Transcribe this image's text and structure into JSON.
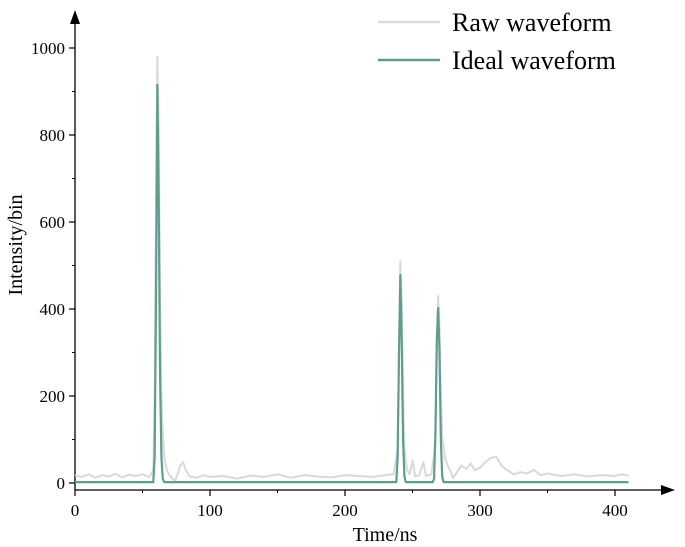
{
  "chart_data": {
    "type": "line",
    "xlabel": "Time/ns",
    "ylabel": "Intensity/bin",
    "xlim": [
      0,
      440
    ],
    "ylim": [
      -10,
      1100
    ],
    "xticks": [
      0,
      100,
      200,
      300,
      400
    ],
    "yticks": [
      0,
      200,
      400,
      600,
      800,
      1000
    ],
    "legend": {
      "position": "top-right"
    },
    "grid": false,
    "series": [
      {
        "name": "Raw waveform",
        "color": "#d9d9d9",
        "points": [
          [
            0,
            18
          ],
          [
            5,
            14
          ],
          [
            10,
            20
          ],
          [
            15,
            12
          ],
          [
            20,
            18
          ],
          [
            25,
            15
          ],
          [
            30,
            21
          ],
          [
            35,
            13
          ],
          [
            40,
            19
          ],
          [
            45,
            16
          ],
          [
            50,
            20
          ],
          [
            55,
            14
          ],
          [
            58,
            30
          ],
          [
            59,
            200
          ],
          [
            60,
            650
          ],
          [
            61,
            980
          ],
          [
            62,
            820
          ],
          [
            63,
            420
          ],
          [
            64,
            200
          ],
          [
            65,
            120
          ],
          [
            66,
            60
          ],
          [
            68,
            30
          ],
          [
            70,
            18
          ],
          [
            72,
            10
          ],
          [
            74,
            5
          ],
          [
            76,
            20
          ],
          [
            78,
            40
          ],
          [
            80,
            48
          ],
          [
            82,
            30
          ],
          [
            85,
            15
          ],
          [
            90,
            12
          ],
          [
            95,
            18
          ],
          [
            100,
            14
          ],
          [
            110,
            16
          ],
          [
            120,
            10
          ],
          [
            130,
            17
          ],
          [
            140,
            14
          ],
          [
            150,
            20
          ],
          [
            160,
            12
          ],
          [
            170,
            18
          ],
          [
            180,
            15
          ],
          [
            190,
            13
          ],
          [
            200,
            18
          ],
          [
            210,
            16
          ],
          [
            220,
            14
          ],
          [
            230,
            18
          ],
          [
            236,
            20
          ],
          [
            239,
            80
          ],
          [
            240,
            300
          ],
          [
            241,
            510
          ],
          [
            242,
            420
          ],
          [
            243,
            200
          ],
          [
            244,
            80
          ],
          [
            246,
            30
          ],
          [
            248,
            20
          ],
          [
            250,
            52
          ],
          [
            252,
            15
          ],
          [
            255,
            18
          ],
          [
            258,
            48
          ],
          [
            260,
            16
          ],
          [
            264,
            20
          ],
          [
            267,
            90
          ],
          [
            268,
            300
          ],
          [
            269,
            430
          ],
          [
            270,
            360
          ],
          [
            271,
            200
          ],
          [
            272,
            110
          ],
          [
            274,
            60
          ],
          [
            276,
            40
          ],
          [
            278,
            28
          ],
          [
            280,
            12
          ],
          [
            283,
            25
          ],
          [
            286,
            40
          ],
          [
            290,
            32
          ],
          [
            293,
            45
          ],
          [
            296,
            30
          ],
          [
            300,
            35
          ],
          [
            304,
            48
          ],
          [
            308,
            58
          ],
          [
            312,
            60
          ],
          [
            316,
            40
          ],
          [
            320,
            30
          ],
          [
            325,
            20
          ],
          [
            330,
            25
          ],
          [
            335,
            22
          ],
          [
            340,
            30
          ],
          [
            345,
            18
          ],
          [
            350,
            22
          ],
          [
            360,
            16
          ],
          [
            370,
            20
          ],
          [
            380,
            15
          ],
          [
            390,
            18
          ],
          [
            400,
            16
          ],
          [
            405,
            20
          ],
          [
            410,
            17
          ]
        ]
      },
      {
        "name": "Ideal waveform",
        "color": "#5f9e8f",
        "points": [
          [
            0,
            2
          ],
          [
            55,
            2
          ],
          [
            58,
            2
          ],
          [
            59,
            60
          ],
          [
            60,
            420
          ],
          [
            61,
            915
          ],
          [
            62,
            650
          ],
          [
            63,
            250
          ],
          [
            64,
            60
          ],
          [
            65,
            10
          ],
          [
            66,
            2
          ],
          [
            236,
            2
          ],
          [
            238,
            2
          ],
          [
            239,
            60
          ],
          [
            240,
            300
          ],
          [
            241,
            478
          ],
          [
            242,
            330
          ],
          [
            243,
            100
          ],
          [
            244,
            15
          ],
          [
            245,
            2
          ],
          [
            265,
            2
          ],
          [
            266,
            10
          ],
          [
            267,
            120
          ],
          [
            268,
            330
          ],
          [
            269,
            402
          ],
          [
            270,
            300
          ],
          [
            271,
            100
          ],
          [
            272,
            15
          ],
          [
            273,
            2
          ],
          [
            410,
            2
          ]
        ]
      }
    ]
  }
}
